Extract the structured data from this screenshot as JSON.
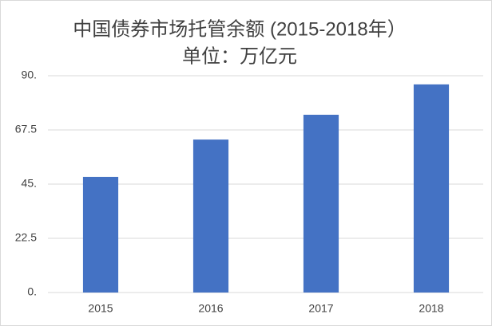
{
  "chart_data": {
    "type": "bar",
    "title": "中国债券市场托管余额 (2015-2018年）",
    "subtitle": "单位：万亿元",
    "categories": [
      "2015",
      "2016",
      "2017",
      "2018"
    ],
    "values": [
      48,
      63.5,
      73.8,
      86.4
    ],
    "color": "#4472c4",
    "ylim": [
      0,
      90
    ],
    "yticks": [
      {
        "value": 0,
        "label": "0."
      },
      22.5,
      {
        "value": 45,
        "label": "45."
      },
      67.5,
      {
        "value": 90,
        "label": "90."
      }
    ],
    "grid": true
  }
}
